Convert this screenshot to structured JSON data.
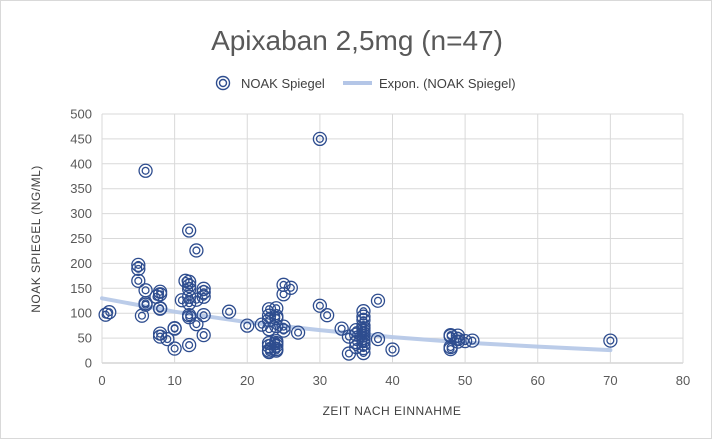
{
  "chart_data": {
    "type": "scatter",
    "title": "Apixaban 2,5mg (n=47)",
    "xlabel": "ZEIT NACH EINNAHME",
    "ylabel": "NOAK SPIEGEL (NG/ML)",
    "xlim": [
      0,
      80
    ],
    "ylim": [
      0,
      500
    ],
    "x_ticks": [
      "0",
      "10",
      "20",
      "30",
      "40",
      "50",
      "60",
      "70",
      "80"
    ],
    "y_ticks": [
      "0",
      "50",
      "100",
      "150",
      "200",
      "250",
      "300",
      "350",
      "400",
      "450",
      "500"
    ],
    "grid": true,
    "legend_position": "top",
    "colors": {
      "marker": "#2e4d8f",
      "trend": "#b4c6e7",
      "grid": "#d9d9d9",
      "axis": "#bfbfbf"
    },
    "series": [
      {
        "name": "NOAK Spiegel",
        "marker": "double-circle",
        "points": [
          [
            0.5,
            97
          ],
          [
            1,
            102
          ],
          [
            5,
            197
          ],
          [
            5,
            189
          ],
          [
            5,
            165
          ],
          [
            5.5,
            95
          ],
          [
            6,
            386
          ],
          [
            6,
            146
          ],
          [
            6,
            120
          ],
          [
            6,
            117
          ],
          [
            7.5,
            133
          ],
          [
            8,
            143
          ],
          [
            8,
            138
          ],
          [
            8,
            110
          ],
          [
            8,
            109
          ],
          [
            8,
            59
          ],
          [
            8,
            53
          ],
          [
            9,
            48
          ],
          [
            10,
            69
          ],
          [
            10,
            70
          ],
          [
            10,
            29
          ],
          [
            11,
            126
          ],
          [
            11.5,
            165
          ],
          [
            12,
            266
          ],
          [
            12,
            163
          ],
          [
            12,
            155
          ],
          [
            12,
            148
          ],
          [
            12,
            133
          ],
          [
            12,
            120
          ],
          [
            12,
            96
          ],
          [
            12,
            92
          ],
          [
            12,
            36
          ],
          [
            13,
            226
          ],
          [
            13,
            127
          ],
          [
            13,
            78
          ],
          [
            14,
            149
          ],
          [
            14,
            142
          ],
          [
            14,
            133
          ],
          [
            14,
            96
          ],
          [
            14,
            56
          ],
          [
            17.5,
            103
          ],
          [
            20,
            75
          ],
          [
            22,
            77
          ],
          [
            23,
            108
          ],
          [
            23,
            95
          ],
          [
            23,
            86
          ],
          [
            23,
            68
          ],
          [
            23,
            40
          ],
          [
            23,
            34
          ],
          [
            23,
            25
          ],
          [
            23,
            22
          ],
          [
            24,
            110
          ],
          [
            24,
            94
          ],
          [
            24,
            90
          ],
          [
            24,
            74
          ],
          [
            24,
            44
          ],
          [
            24,
            40
          ],
          [
            24,
            35
          ],
          [
            24,
            28
          ],
          [
            24,
            25
          ],
          [
            25,
            157
          ],
          [
            25,
            138
          ],
          [
            25,
            73
          ],
          [
            25,
            65
          ],
          [
            26,
            151
          ],
          [
            27,
            61
          ],
          [
            30,
            450
          ],
          [
            30,
            115
          ],
          [
            31,
            96
          ],
          [
            33,
            69
          ],
          [
            34,
            53
          ],
          [
            34,
            19
          ],
          [
            35,
            66
          ],
          [
            35,
            57
          ],
          [
            35,
            42
          ],
          [
            35,
            32
          ],
          [
            36,
            104
          ],
          [
            36,
            93
          ],
          [
            36,
            86
          ],
          [
            36,
            75
          ],
          [
            36,
            70
          ],
          [
            36,
            65
          ],
          [
            36,
            60
          ],
          [
            36,
            55
          ],
          [
            36,
            49
          ],
          [
            36,
            44
          ],
          [
            36,
            38
          ],
          [
            36,
            30
          ],
          [
            36,
            20
          ],
          [
            38,
            125
          ],
          [
            38,
            48
          ],
          [
            40,
            27
          ],
          [
            48,
            56
          ],
          [
            48,
            54
          ],
          [
            48,
            32
          ],
          [
            48,
            28
          ],
          [
            49,
            55
          ],
          [
            49,
            48
          ],
          [
            49,
            43
          ],
          [
            50,
            44
          ],
          [
            51,
            45
          ],
          [
            70,
            45
          ]
        ]
      },
      {
        "name": "Expon. (NOAK Spiegel)",
        "type": "trendline",
        "x": [
          0,
          10,
          20,
          30,
          40,
          50,
          60,
          70
        ],
        "values": [
          130,
          103,
          82,
          66,
          52,
          41,
          33,
          26
        ]
      }
    ]
  }
}
